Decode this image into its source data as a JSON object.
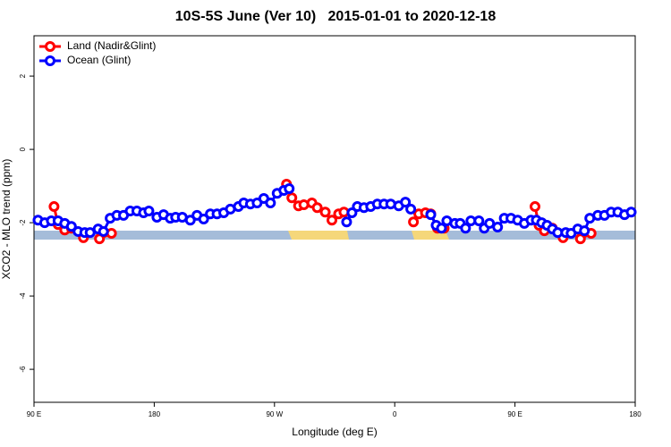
{
  "chart_data": {
    "type": "line",
    "title": "10S-5S June (Ver 10)   2015-01-01 to 2020-12-18",
    "xlabel": "Longitude (deg E)",
    "ylabel": "XCO2 - MLO trend (ppm)",
    "xlim": [
      90,
      540
    ],
    "ylim": [
      -6.9,
      3.1
    ],
    "xticks": [
      {
        "value": 90,
        "label": "90 E"
      },
      180,
      {
        "value": 270,
        "label": "90 W"
      },
      {
        "value": 360,
        "label": "0"
      },
      {
        "value": 450,
        "label": "90 E"
      },
      {
        "value": 540,
        "label": "180"
      }
    ],
    "yticks": [
      2,
      0,
      -2,
      -4,
      -6
    ],
    "legend": "top-left",
    "series": [
      {
        "name": "Land (Nadir&Glint)",
        "color": "#ff0000",
        "x": [
          105,
          108,
          113,
          118,
          null,
          127,
          null,
          139,
          148,
          null,
          279,
          283,
          288,
          292,
          298,
          302,
          308,
          313,
          318,
          322,
          null,
          374,
          378,
          383,
          387,
          392,
          397,
          null,
          465,
          468,
          472,
          478,
          null,
          486,
          null,
          499,
          507
        ],
        "values": [
          -1.56,
          -2.05,
          -2.2,
          -2.15,
          null,
          -2.41,
          null,
          -2.44,
          -2.29,
          null,
          -0.95,
          -1.32,
          -1.54,
          -1.51,
          -1.46,
          -1.59,
          -1.71,
          -1.93,
          -1.76,
          -1.71,
          null,
          -1.98,
          -1.76,
          -1.73,
          -1.76,
          -2.15,
          -2.15,
          null,
          -1.56,
          -2.07,
          -2.22,
          -2.15,
          null,
          -2.41,
          null,
          -2.44,
          -2.29
        ]
      },
      {
        "name": "Ocean (Glint)",
        "color": "#0000ff",
        "x": [
          93,
          98,
          103,
          108,
          113,
          118,
          123,
          128,
          132,
          138,
          142,
          147,
          152,
          157,
          162,
          167,
          172,
          176,
          182,
          187,
          192,
          196,
          201,
          207,
          212,
          217,
          222,
          227,
          232,
          237,
          243,
          247,
          252,
          257,
          262,
          267,
          272,
          277,
          281,
          null,
          324,
          328,
          332,
          337,
          342,
          347,
          352,
          357,
          363,
          368,
          372,
          null,
          387,
          391,
          395,
          399,
          405,
          409,
          413,
          417,
          423,
          427,
          431,
          437,
          442,
          447,
          452,
          457,
          462,
          466,
          470,
          474,
          478,
          482,
          488,
          492,
          497,
          502,
          506,
          512,
          517,
          522,
          527,
          532,
          537
        ],
        "values": [
          -1.93,
          -2.0,
          -1.95,
          -1.95,
          -2.02,
          -2.1,
          -2.24,
          -2.27,
          -2.27,
          -2.17,
          -2.24,
          -1.88,
          -1.8,
          -1.8,
          -1.68,
          -1.68,
          -1.73,
          -1.68,
          -1.85,
          -1.78,
          -1.88,
          -1.85,
          -1.85,
          -1.93,
          -1.8,
          -1.9,
          -1.76,
          -1.76,
          -1.73,
          -1.63,
          -1.56,
          -1.46,
          -1.49,
          -1.46,
          -1.34,
          -1.46,
          -1.2,
          -1.12,
          -1.07,
          null,
          -1.98,
          -1.73,
          -1.56,
          -1.59,
          -1.56,
          -1.49,
          -1.49,
          -1.49,
          -1.54,
          -1.44,
          -1.63,
          null,
          -1.78,
          -2.07,
          -2.15,
          -1.95,
          -2.02,
          -2.02,
          -2.15,
          -1.95,
          -1.95,
          -2.15,
          -2.02,
          -2.12,
          -1.88,
          -1.88,
          -1.93,
          -2.02,
          -1.93,
          -1.93,
          -2.0,
          -2.07,
          -2.17,
          -2.27,
          -2.27,
          -2.29,
          -2.17,
          -2.22,
          -1.88,
          -1.8,
          -1.8,
          -1.71,
          -1.71,
          -1.78,
          -1.71
        ]
      }
    ]
  }
}
